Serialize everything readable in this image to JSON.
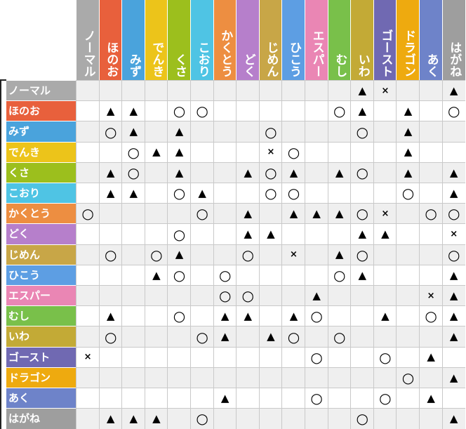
{
  "columns": [
    {
      "label": "ノーマル",
      "color": "#aaaaaa"
    },
    {
      "label": "ほのお",
      "color": "#e8603c"
    },
    {
      "label": "みず",
      "color": "#4aa3dc"
    },
    {
      "label": "でんき",
      "color": "#ecc41a"
    },
    {
      "label": "くさ",
      "color": "#9cbf1d"
    },
    {
      "label": "こおり",
      "color": "#4fc4e4"
    },
    {
      "label": "かくとう",
      "color": "#ed8e41"
    },
    {
      "label": "どく",
      "color": "#b67fcb"
    },
    {
      "label": "じめん",
      "color": "#c8a647"
    },
    {
      "label": "ひこう",
      "color": "#5d9ee3"
    },
    {
      "label": "エスパー",
      "color": "#ea86b4"
    },
    {
      "label": "むし",
      "color": "#79c04a"
    },
    {
      "label": "いわ",
      "color": "#c3aa36"
    },
    {
      "label": "ゴースト",
      "color": "#7069b2"
    },
    {
      "label": "ドラゴン",
      "color": "#eeaa0f"
    },
    {
      "label": "あく",
      "color": "#6e83c9"
    },
    {
      "label": "はがね",
      "color": "#9e9e9e"
    }
  ],
  "rows": [
    {
      "label": "ノーマル",
      "color": "#aaaaaa",
      "cells": [
        "",
        "",
        "",
        "",
        "",
        "",
        "",
        "",
        "",
        "",
        "",
        "",
        "▲",
        "×",
        "",
        "",
        "▲"
      ]
    },
    {
      "label": "ほのお",
      "color": "#e8603c",
      "cells": [
        "",
        "▲",
        "▲",
        "",
        "○",
        "○",
        "",
        "",
        "",
        "",
        "",
        "○",
        "▲",
        "",
        "▲",
        "",
        "○"
      ]
    },
    {
      "label": "みず",
      "color": "#4aa3dc",
      "cells": [
        "",
        "○",
        "▲",
        "",
        "▲",
        "",
        "",
        "",
        "○",
        "",
        "",
        "",
        "○",
        "",
        "▲",
        "",
        ""
      ]
    },
    {
      "label": "でんき",
      "color": "#ecc41a",
      "cells": [
        "",
        "",
        "○",
        "▲",
        "▲",
        "",
        "",
        "",
        "×",
        "○",
        "",
        "",
        "",
        "",
        "▲",
        "",
        ""
      ]
    },
    {
      "label": "くさ",
      "color": "#9cbf1d",
      "cells": [
        "",
        "▲",
        "○",
        "",
        "▲",
        "",
        "",
        "▲",
        "○",
        "▲",
        "",
        "▲",
        "○",
        "",
        "▲",
        "",
        "▲"
      ]
    },
    {
      "label": "こおり",
      "color": "#4fc4e4",
      "cells": [
        "",
        "▲",
        "▲",
        "",
        "○",
        "▲",
        "",
        "",
        "○",
        "○",
        "",
        "",
        "",
        "",
        "○",
        "",
        "▲"
      ]
    },
    {
      "label": "かくとう",
      "color": "#ed8e41",
      "cells": [
        "○",
        "",
        "",
        "",
        "",
        "○",
        "",
        "▲",
        "",
        "▲",
        "▲",
        "▲",
        "○",
        "×",
        "",
        "○",
        "○"
      ]
    },
    {
      "label": "どく",
      "color": "#b67fcb",
      "cells": [
        "",
        "",
        "",
        "",
        "○",
        "",
        "",
        "▲",
        "▲",
        "",
        "",
        "",
        "▲",
        "▲",
        "",
        "",
        "×"
      ]
    },
    {
      "label": "じめん",
      "color": "#c8a647",
      "cells": [
        "",
        "○",
        "",
        "○",
        "▲",
        "",
        "",
        "○",
        "",
        "×",
        "",
        "▲",
        "○",
        "",
        "",
        "",
        "○"
      ]
    },
    {
      "label": "ひこう",
      "color": "#5d9ee3",
      "cells": [
        "",
        "",
        "",
        "▲",
        "○",
        "",
        "○",
        "",
        "",
        "",
        "",
        "○",
        "▲",
        "",
        "",
        "",
        "▲"
      ]
    },
    {
      "label": "エスパー",
      "color": "#ea86b4",
      "cells": [
        "",
        "",
        "",
        "",
        "",
        "",
        "○",
        "○",
        "",
        "",
        "▲",
        "",
        "",
        "",
        "",
        "×",
        "▲"
      ]
    },
    {
      "label": "むし",
      "color": "#79c04a",
      "cells": [
        "",
        "▲",
        "",
        "",
        "○",
        "",
        "▲",
        "▲",
        "",
        "▲",
        "○",
        "",
        "",
        "▲",
        "",
        "○",
        "▲"
      ]
    },
    {
      "label": "いわ",
      "color": "#c3aa36",
      "cells": [
        "",
        "○",
        "",
        "",
        "",
        "○",
        "▲",
        "",
        "▲",
        "○",
        "",
        "○",
        "",
        "",
        "",
        "",
        "▲"
      ]
    },
    {
      "label": "ゴースト",
      "color": "#7069b2",
      "cells": [
        "×",
        "",
        "",
        "",
        "",
        "",
        "",
        "",
        "",
        "",
        "○",
        "",
        "",
        "○",
        "",
        "▲",
        ""
      ]
    },
    {
      "label": "ドラゴン",
      "color": "#eeaa0f",
      "cells": [
        "",
        "",
        "",
        "",
        "",
        "",
        "",
        "",
        "",
        "",
        "",
        "",
        "",
        "",
        "○",
        "",
        "▲"
      ]
    },
    {
      "label": "あく",
      "color": "#6e83c9",
      "cells": [
        "",
        "",
        "",
        "",
        "",
        "",
        "▲",
        "",
        "",
        "",
        "○",
        "",
        "",
        "○",
        "",
        "▲",
        ""
      ]
    },
    {
      "label": "はがね",
      "color": "#9e9e9e",
      "cells": [
        "",
        "▲",
        "▲",
        "▲",
        "",
        "○",
        "",
        "",
        "",
        "",
        "",
        "",
        "○",
        "",
        "",
        "",
        "▲"
      ]
    }
  ]
}
